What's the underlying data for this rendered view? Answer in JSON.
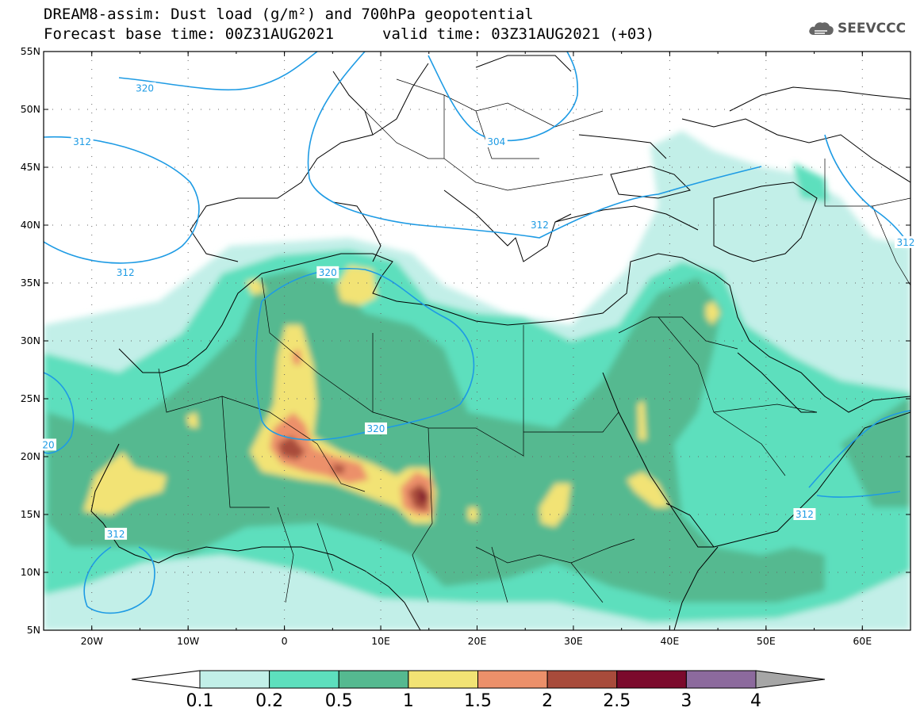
{
  "title": {
    "line1": "DREAM8-assim: Dust load (g/m²) and 700hPa geopotential",
    "line2_base": "Forecast base time: 00Z31AUG2021",
    "line2_valid": "valid time: 03Z31AUG2021 (+03)"
  },
  "logo": {
    "text": "SEEVCCC",
    "icon": "cloud-icon"
  },
  "axes": {
    "lon_range": [
      -25,
      65
    ],
    "lat_range": [
      5,
      55
    ],
    "lat_ticks": [
      "55N",
      "50N",
      "45N",
      "40N",
      "35N",
      "30N",
      "25N",
      "20N",
      "15N",
      "10N",
      "5N"
    ],
    "lon_ticks": [
      "20W",
      "10W",
      "0",
      "10E",
      "20E",
      "30E",
      "40E",
      "50E",
      "60E"
    ],
    "grid": "dotted"
  },
  "contour_labels": [
    {
      "text": "320",
      "lon": -14.5,
      "lat": 51.8
    },
    {
      "text": "312",
      "lon": -21,
      "lat": 47.2
    },
    {
      "text": "304",
      "lon": 22,
      "lat": 47.2
    },
    {
      "text": "312",
      "lon": -16.5,
      "lat": 35.9
    },
    {
      "text": "320",
      "lon": 4.5,
      "lat": 35.9
    },
    {
      "text": "312",
      "lon": 26.5,
      "lat": 40.0
    },
    {
      "text": "312",
      "lon": 64.5,
      "lat": 38.5
    },
    {
      "text": "320",
      "lon": 9.5,
      "lat": 22.4
    },
    {
      "text": "20",
      "lon": -24.5,
      "lat": 21.0
    },
    {
      "text": "312",
      "lon": -17.5,
      "lat": 13.3
    },
    {
      "text": "312",
      "lon": 54,
      "lat": 15.0
    }
  ],
  "colorbar": {
    "labels": [
      "0.1",
      "0.2",
      "0.5",
      "1",
      "1.5",
      "2",
      "2.5",
      "3",
      "4"
    ],
    "colors": [
      "#c2efe8",
      "#5ddfbd",
      "#55b990",
      "#f2e374",
      "#ec906a",
      "#a84b3b",
      "#7b0a2c",
      "#8c6a9d",
      "#a6a6a6"
    ]
  }
}
